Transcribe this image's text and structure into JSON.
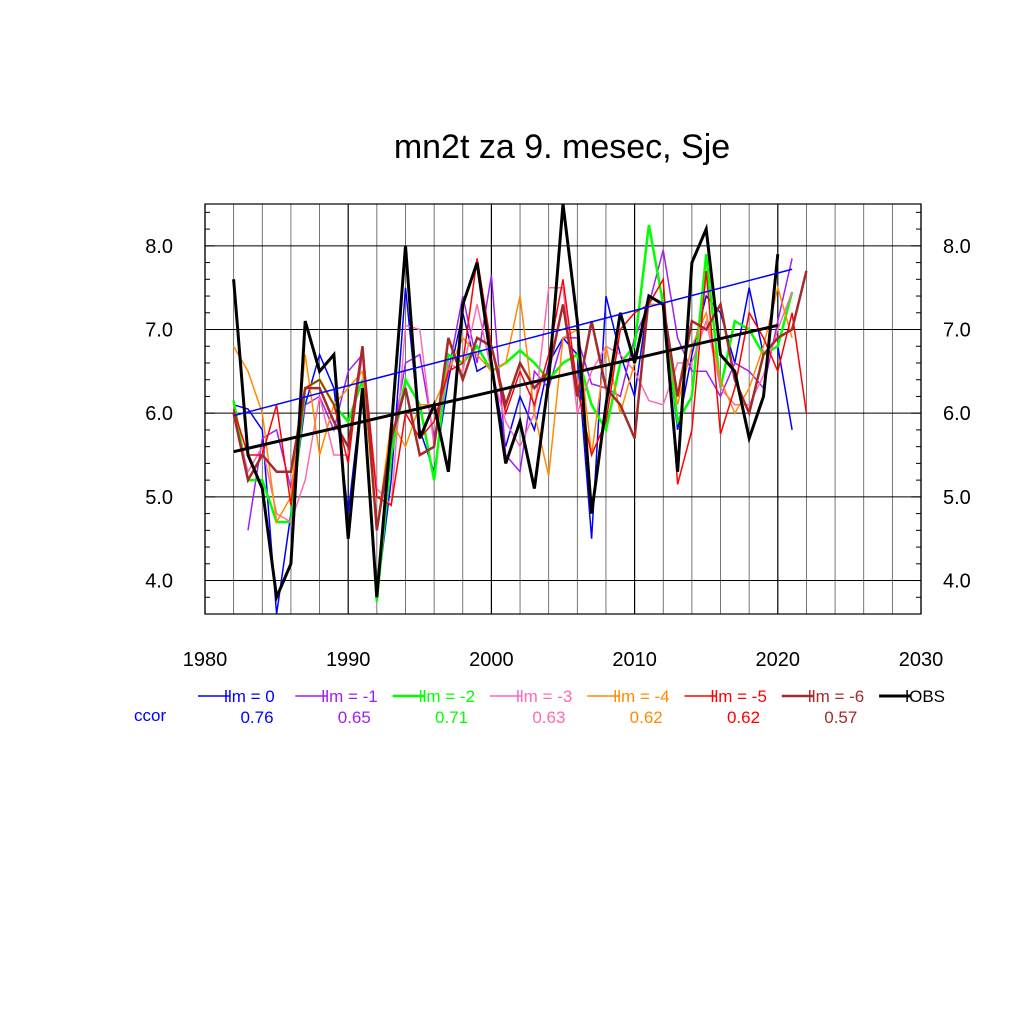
{
  "chart_data": {
    "type": "line",
    "title": "mn2t za 9. mesec, Sje",
    "xlabel": "",
    "ylabel": "",
    "xlim": [
      1980,
      2030
    ],
    "ylim": [
      3.6,
      8.5
    ],
    "x_ticks": [
      "1980",
      "1990",
      "2000",
      "2010",
      "2020",
      "2030"
    ],
    "y_ticks": [
      "4.0",
      "5.0",
      "6.0",
      "7.0",
      "8.0"
    ],
    "y_tick_values": [
      4.0,
      5.0,
      6.0,
      7.0,
      8.0
    ],
    "grid": true,
    "legend_position": "bottom",
    "ccor_label": "ccor",
    "series": [
      {
        "name": "lm = 0",
        "color": "#0000ff",
        "ccor": "0.76",
        "x0": 1982,
        "width": 1.5,
        "values": [
          6.1,
          6.05,
          5.8,
          3.6,
          4.8,
          6.1,
          6.7,
          6.3,
          4.8,
          6.3,
          3.8,
          5.2,
          7.5,
          5.8,
          5.3,
          6.4,
          7.2,
          6.5,
          6.6,
          5.6,
          6.2,
          5.8,
          6.6,
          6.9,
          6.7,
          4.5,
          7.4,
          6.7,
          6.2,
          7.4,
          7.3,
          5.8,
          6.7,
          7.4,
          7.2,
          6.6,
          7.5,
          6.7,
          6.8,
          5.8
        ]
      },
      {
        "name": "lm = -1",
        "color": "#a020f0",
        "ccor": "0.65",
        "x0": 1983,
        "width": 1.5,
        "values": [
          4.6,
          5.7,
          5.8,
          5.1,
          6.1,
          6.2,
          5.8,
          6.5,
          6.7,
          4.6,
          5.6,
          6.6,
          6.7,
          5.7,
          6.5,
          7.4,
          6.6,
          7.65,
          5.5,
          5.3,
          6.5,
          6.3,
          6.9,
          6.9,
          6.35,
          6.3,
          6.2,
          6.9,
          7.3,
          7.95,
          6.9,
          6.5,
          6.5,
          6.2,
          6.6,
          6.5,
          6.3,
          7.1,
          7.85
        ]
      },
      {
        "name": "lm = -2",
        "color": "#00ff00",
        "ccor": "0.71",
        "x0": 1982,
        "width": 2.5,
        "values": [
          6.15,
          5.2,
          5.2,
          4.7,
          4.7,
          6.3,
          6.4,
          6.1,
          5.9,
          6.4,
          3.75,
          5.5,
          6.4,
          6.1,
          5.2,
          6.7,
          6.6,
          6.8,
          6.5,
          6.6,
          6.75,
          6.6,
          6.4,
          6.6,
          6.7,
          6.1,
          5.8,
          6.6,
          6.8,
          8.25,
          7.3,
          5.9,
          6.2,
          7.9,
          6.3,
          7.1,
          7.0,
          6.7,
          6.8,
          7.45
        ]
      },
      {
        "name": "lm = -3",
        "color": "#ff69b4",
        "ccor": "0.63",
        "x0": 1982,
        "width": 1.5,
        "values": [
          6.0,
          5.3,
          5.6,
          4.8,
          4.7,
          5.2,
          6.2,
          5.5,
          5.5,
          6.7,
          5.1,
          4.9,
          7.05,
          7.0,
          5.6,
          6.6,
          6.5,
          7.3,
          6.5,
          5.9,
          5.6,
          6.0,
          7.5,
          7.5,
          6.0,
          6.5,
          6.8,
          6.7,
          6.5,
          6.15,
          6.1,
          6.6,
          6.6,
          7.1,
          6.3,
          6.1,
          6.1,
          6.45,
          7.0,
          7.45
        ]
      },
      {
        "name": "lm = -4",
        "color": "#ff8c00",
        "ccor": "0.62",
        "x0": 1982,
        "width": 1.5,
        "values": [
          6.8,
          6.5,
          6.0,
          4.7,
          5.0,
          6.7,
          5.5,
          6.1,
          6.3,
          6.5,
          4.6,
          5.9,
          5.6,
          6.1,
          6.1,
          6.5,
          6.9,
          6.7,
          6.5,
          6.6,
          7.4,
          6.0,
          5.25,
          6.9,
          7.0,
          5.5,
          6.8,
          6.0,
          6.6,
          7.3,
          7.3,
          6.1,
          6.8,
          7.2,
          6.4,
          6.0,
          6.3,
          6.8,
          7.5,
          6.9
        ]
      },
      {
        "name": "lm = -5",
        "color": "#ff0000",
        "ccor": "0.62",
        "x0": 1982,
        "width": 1.5,
        "values": [
          6.05,
          5.5,
          5.5,
          6.1,
          4.9,
          6.3,
          6.4,
          6.1,
          5.4,
          6.8,
          5.0,
          4.9,
          6.0,
          5.7,
          5.9,
          6.5,
          6.6,
          7.85,
          6.8,
          6.0,
          6.5,
          6.1,
          6.7,
          7.6,
          6.3,
          5.5,
          5.9,
          7.0,
          7.2,
          7.3,
          7.6,
          5.15,
          5.8,
          7.7,
          5.75,
          6.3,
          7.2,
          6.9,
          6.5,
          7.2,
          6.0
        ]
      },
      {
        "name": "lm = -6",
        "color": "#a52a2a",
        "ccor": "0.57",
        "x0": 1982,
        "width": 2.5,
        "values": [
          6.0,
          5.2,
          5.5,
          5.3,
          5.3,
          6.3,
          6.3,
          5.9,
          5.6,
          6.8,
          4.6,
          5.7,
          6.3,
          5.5,
          5.6,
          6.9,
          6.4,
          6.9,
          6.8,
          6.1,
          6.6,
          6.3,
          6.5,
          7.3,
          6.2,
          7.1,
          6.3,
          6.1,
          5.7,
          7.4,
          7.3,
          6.2,
          7.1,
          7.0,
          7.3,
          6.4,
          6.0,
          6.7,
          6.9,
          7.0,
          7.7
        ]
      },
      {
        "name": "OBS",
        "color": "#000000",
        "x0": 1982,
        "width": 3,
        "values": [
          7.6,
          5.5,
          5.1,
          3.8,
          4.2,
          7.1,
          6.5,
          6.7,
          4.5,
          6.3,
          3.8,
          5.8,
          8.0,
          5.7,
          6.1,
          5.3,
          7.3,
          7.8,
          6.6,
          5.4,
          5.9,
          5.1,
          6.4,
          8.5,
          7.1,
          4.8,
          6.1,
          7.2,
          6.6,
          7.4,
          7.3,
          5.3,
          7.8,
          8.2,
          6.7,
          6.5,
          5.7,
          6.2,
          7.9
        ]
      }
    ],
    "trend_lines": [
      {
        "name": "lm = 0 trend",
        "color": "#0000ff",
        "x": [
          1982,
          2021
        ],
        "y": [
          5.97,
          7.72
        ],
        "width": 1.5
      },
      {
        "name": "OBS trend",
        "color": "#000000",
        "x": [
          1982,
          2020
        ],
        "y": [
          5.54,
          7.05
        ],
        "width": 3
      }
    ]
  }
}
